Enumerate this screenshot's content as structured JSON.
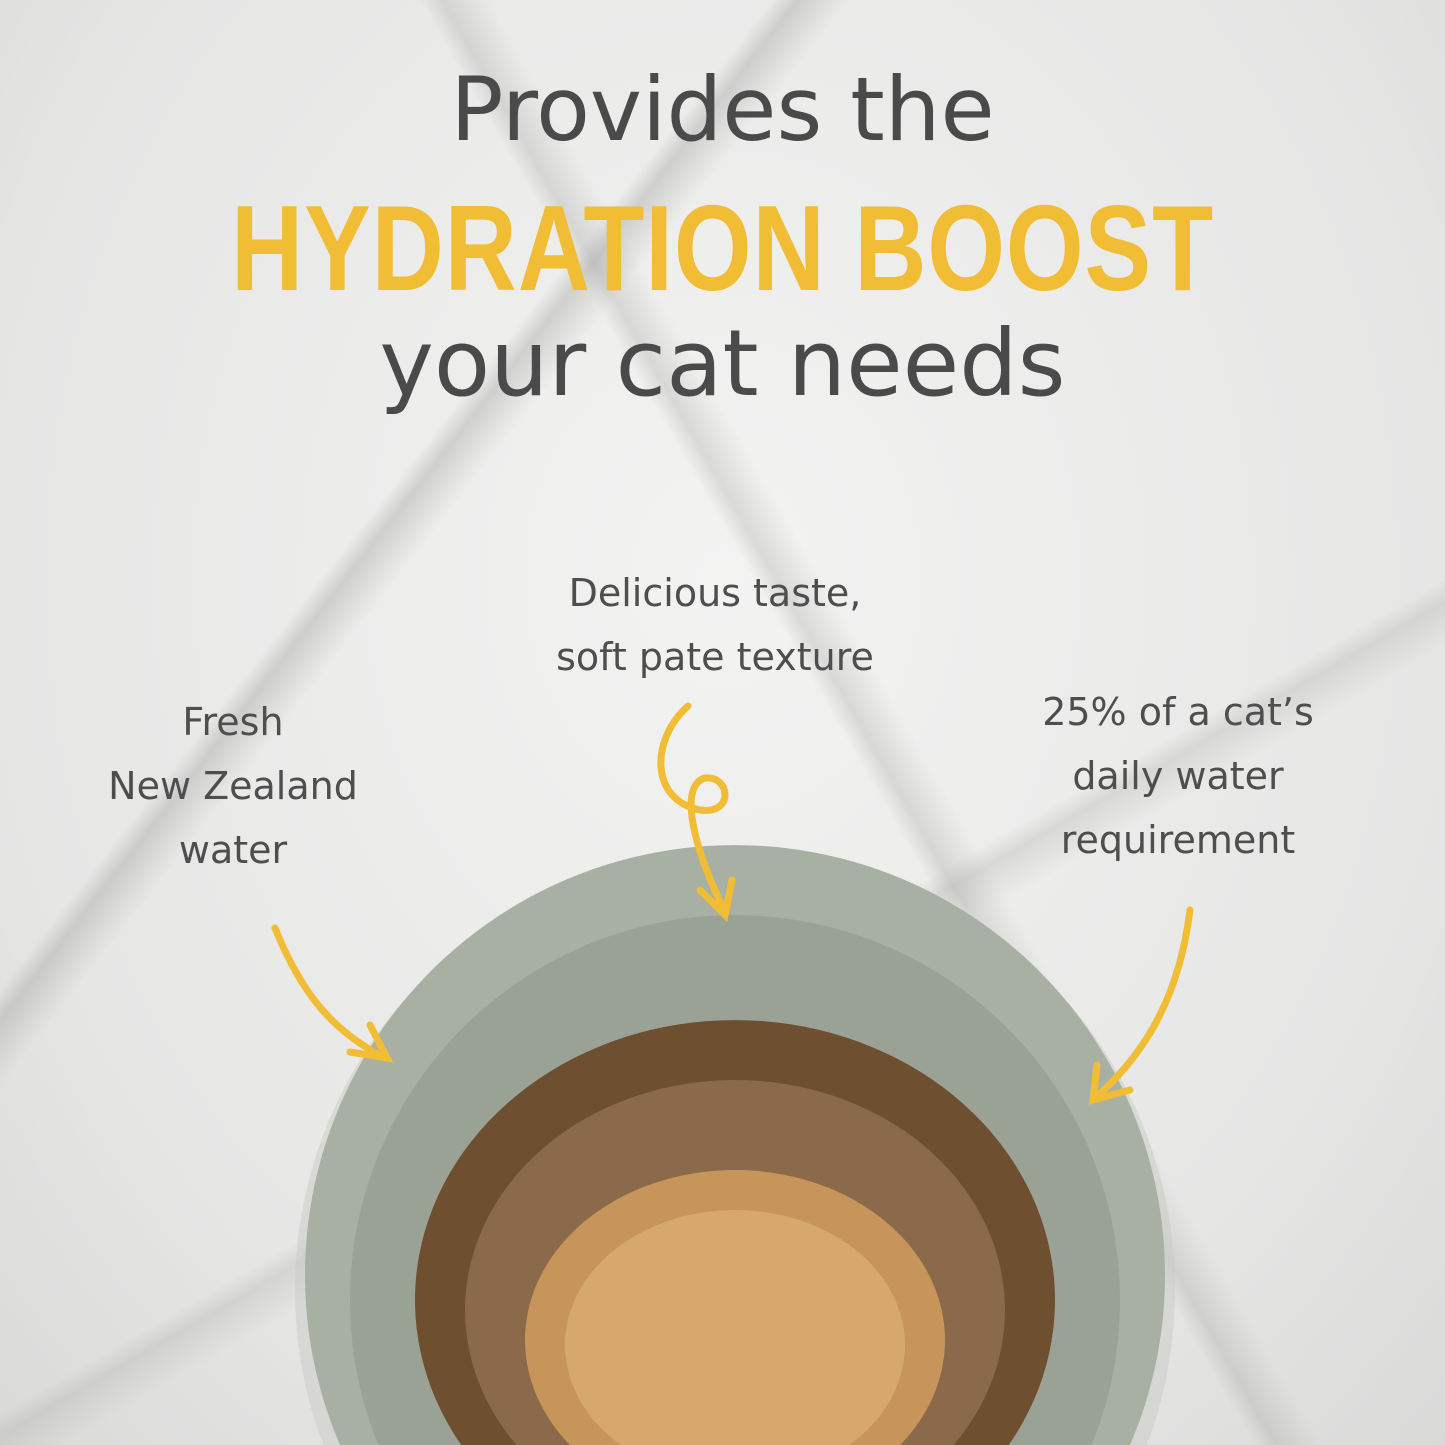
{
  "headline": {
    "line1": "Provides the",
    "highlight": "HYDRATION BOOST",
    "line3": "your cat needs"
  },
  "callouts": {
    "center": [
      "Delicious taste,",
      "soft pate texture"
    ],
    "left": [
      "Fresh",
      "New Zealand",
      "water"
    ],
    "right": [
      "25% of a cat’s",
      "daily water",
      "requirement"
    ]
  },
  "colors": {
    "accent": "#f1bd35",
    "text": "#4a4a4a",
    "bowl": "#a7afa3"
  }
}
